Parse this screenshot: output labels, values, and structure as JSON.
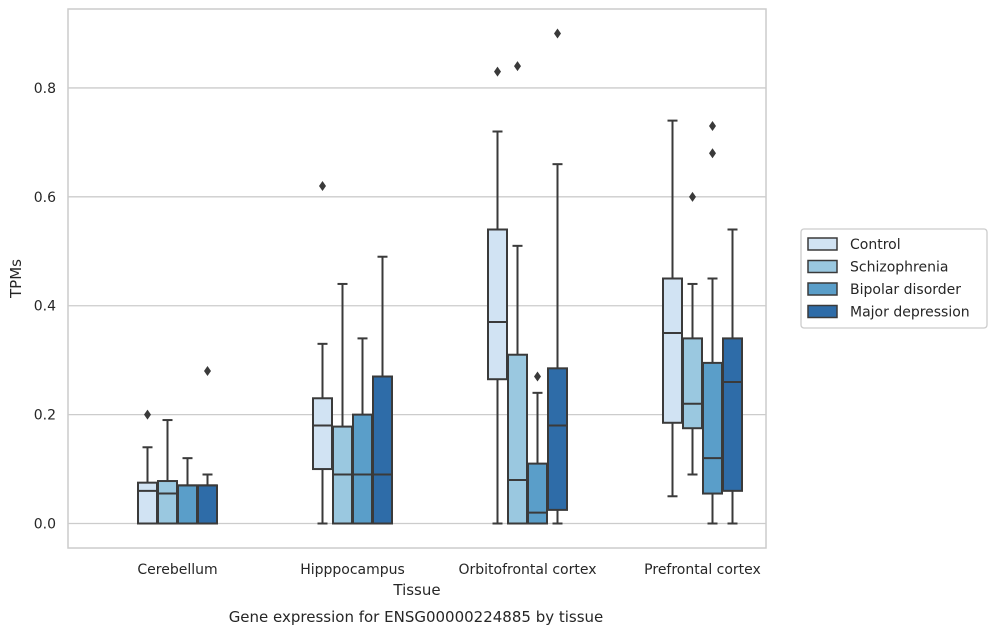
{
  "caption": "Gene expression for ENSG00000224885 by tissue",
  "chart_data": {
    "type": "box",
    "xlabel": "Tissue",
    "ylabel": "TPMs",
    "ylim": [
      -0.045,
      0.945
    ],
    "yticks": [
      0.0,
      0.2,
      0.4,
      0.6,
      0.8
    ],
    "ytick_labels": [
      "0.0",
      "0.2",
      "0.4",
      "0.6",
      "0.8"
    ],
    "grid": "horizontal",
    "legend_position": "right",
    "categories": [
      "Cerebellum",
      "Hipppocampus",
      "Orbitofrontal cortex",
      "Prefrontal cortex"
    ],
    "series": [
      {
        "name": "Control",
        "color": "#d1e3f3",
        "boxes": [
          {
            "whislo": 0.0,
            "q1": 0.0,
            "med": 0.06,
            "q3": 0.075,
            "whishi": 0.14,
            "fliers": [
              0.2
            ]
          },
          {
            "whislo": 0.0,
            "q1": 0.1,
            "med": 0.18,
            "q3": 0.23,
            "whishi": 0.33,
            "fliers": [
              0.62
            ]
          },
          {
            "whislo": 0.0,
            "q1": 0.265,
            "med": 0.37,
            "q3": 0.54,
            "whishi": 0.72,
            "fliers": [
              0.83
            ]
          },
          {
            "whislo": 0.05,
            "q1": 0.185,
            "med": 0.35,
            "q3": 0.45,
            "whishi": 0.74,
            "fliers": []
          }
        ]
      },
      {
        "name": "Schizophrenia",
        "color": "#9ac8e0",
        "boxes": [
          {
            "whislo": 0.0,
            "q1": 0.0,
            "med": 0.055,
            "q3": 0.078,
            "whishi": 0.19,
            "fliers": []
          },
          {
            "whislo": 0.0,
            "q1": 0.0,
            "med": 0.09,
            "q3": 0.178,
            "whishi": 0.44,
            "fliers": []
          },
          {
            "whislo": 0.0,
            "q1": 0.0,
            "med": 0.08,
            "q3": 0.31,
            "whishi": 0.51,
            "fliers": [
              0.84
            ]
          },
          {
            "whislo": 0.09,
            "q1": 0.175,
            "med": 0.22,
            "q3": 0.34,
            "whishi": 0.44,
            "fliers": [
              0.6
            ]
          }
        ]
      },
      {
        "name": "Bipolar disorder",
        "color": "#5a9ec9",
        "boxes": [
          {
            "whislo": 0.0,
            "q1": 0.0,
            "med": 0.07,
            "q3": 0.07,
            "whishi": 0.12,
            "fliers": []
          },
          {
            "whislo": 0.0,
            "q1": 0.0,
            "med": 0.09,
            "q3": 0.2,
            "whishi": 0.34,
            "fliers": []
          },
          {
            "whislo": 0.0,
            "q1": 0.0,
            "med": 0.02,
            "q3": 0.11,
            "whishi": 0.24,
            "fliers": [
              0.27
            ]
          },
          {
            "whislo": 0.0,
            "q1": 0.055,
            "med": 0.12,
            "q3": 0.295,
            "whishi": 0.45,
            "fliers": [
              0.68,
              0.73
            ]
          }
        ]
      },
      {
        "name": "Major depression",
        "color": "#2e6ca8",
        "boxes": [
          {
            "whislo": 0.0,
            "q1": 0.0,
            "med": 0.07,
            "q3": 0.07,
            "whishi": 0.09,
            "fliers": [
              0.28
            ]
          },
          {
            "whislo": 0.0,
            "q1": 0.0,
            "med": 0.09,
            "q3": 0.27,
            "whishi": 0.49,
            "fliers": []
          },
          {
            "whislo": 0.0,
            "q1": 0.025,
            "med": 0.18,
            "q3": 0.285,
            "whishi": 0.66,
            "fliers": [
              0.9
            ]
          },
          {
            "whislo": 0.0,
            "q1": 0.06,
            "med": 0.26,
            "q3": 0.34,
            "whishi": 0.54,
            "fliers": []
          }
        ]
      }
    ]
  },
  "style": {
    "line_color": "#3a3a3a",
    "grid_color": "#cccccc",
    "frame_color": "#cccccc",
    "text_color": "#262626"
  }
}
